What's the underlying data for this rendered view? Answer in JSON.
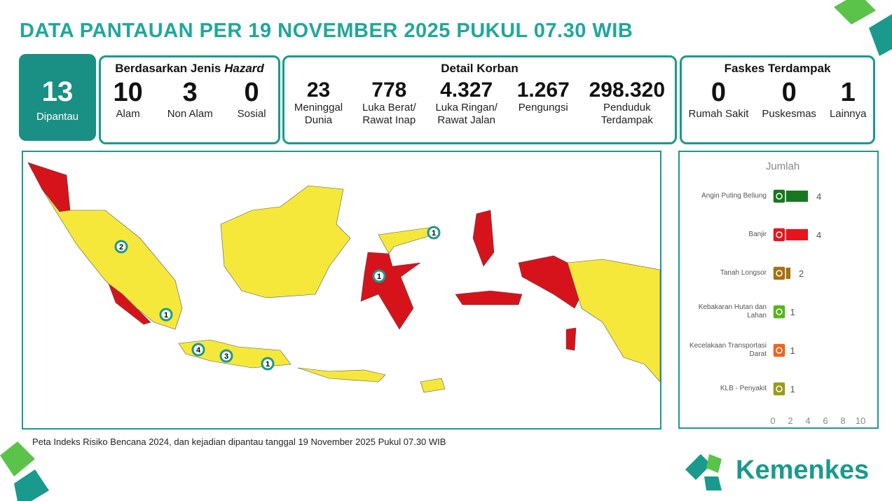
{
  "header": {
    "title": "DATA PANTAUAN PER 19 NOVEMBER 2025 PUKUL 07.30 WIB"
  },
  "summary": {
    "value": "13",
    "label": "Dipantau"
  },
  "hazard": {
    "title_prefix": "Berdasarkan Jenis",
    "title_italic": "Hazard",
    "items": [
      {
        "value": "10",
        "label": [
          "Alam"
        ]
      },
      {
        "value": "3",
        "label": [
          "Non Alam"
        ]
      },
      {
        "value": "0",
        "label": [
          "Sosial"
        ]
      }
    ]
  },
  "korban": {
    "title": "Detail Korban",
    "items": [
      {
        "value": "23",
        "label": [
          "Meninggal",
          "Dunia"
        ]
      },
      {
        "value": "778",
        "label": [
          "Luka Berat/",
          "Rawat Inap"
        ]
      },
      {
        "value": "4.327",
        "label": [
          "Luka Ringan/",
          "Rawat Jalan"
        ]
      },
      {
        "value": "1.267",
        "label": [
          "Pengungsi"
        ]
      },
      {
        "value": "298.320",
        "label": [
          "Penduduk",
          "Terdampak"
        ]
      }
    ]
  },
  "faskes": {
    "title": "Faskes Terdampak",
    "items": [
      {
        "value": "0",
        "label": [
          "Rumah Sakit"
        ]
      },
      {
        "value": "0",
        "label": [
          "Puskesmas"
        ]
      },
      {
        "value": "1",
        "label": [
          "Lainnya"
        ]
      }
    ]
  },
  "map": {
    "markers": [
      "2",
      "1",
      "4",
      "3",
      "1",
      "1",
      "1"
    ],
    "caption": "Peta Indeks Risiko Bencana 2024, dan kejadian dipantau tanggal 19 November 2025 Pukul 07.30 WIB"
  },
  "chart_data": {
    "type": "hbar",
    "title": "Jumlah",
    "categories": [
      "Angin Puting Beliung",
      "Banjir",
      "Tanah Longsor",
      "Kebakaran Hutan dan Lahan",
      "Kecelakaan Transportasi Darat",
      "KLB - Penyakit"
    ],
    "values": [
      4,
      4,
      2,
      1,
      1,
      1
    ],
    "colors": [
      "#17781f",
      "#e8141b",
      "#a5700f",
      "#56b51d",
      "#f0641e",
      "#9a9a1e"
    ],
    "xlim": [
      0,
      10
    ],
    "xticks": [
      0,
      2,
      4,
      6,
      8,
      10
    ]
  },
  "logo": {
    "text": "Kemenkes"
  }
}
